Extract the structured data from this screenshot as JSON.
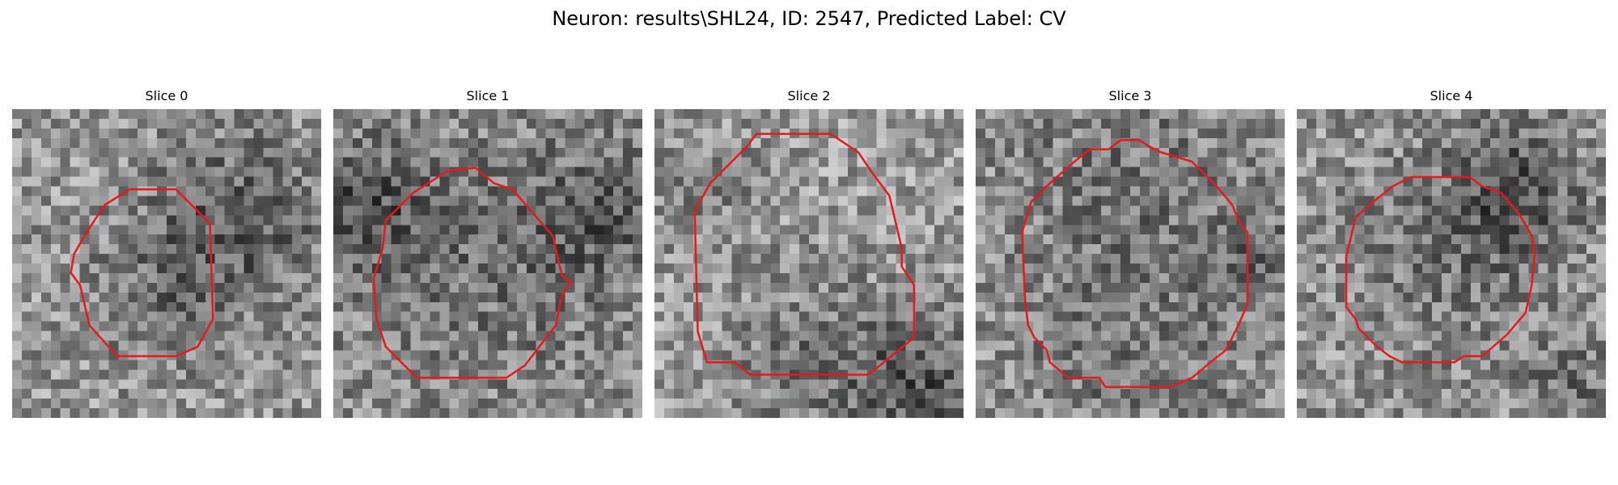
{
  "figure": {
    "title": "Neuron: results\\SHL24, ID: 2547, Predicted Label: CV",
    "contour_color": "#e41a1c",
    "colormap": "gray",
    "grid_size": 32,
    "slices": [
      {
        "title": "Slice 0",
        "background": {
          "base": 150,
          "seed": 11,
          "dark_spots": [
            [
              0.72,
              0.38,
              0.2,
              60
            ],
            [
              0.45,
              0.62,
              0.15,
              30
            ]
          ]
        },
        "contour": [
          [
            0.38,
            0.26
          ],
          [
            0.53,
            0.26
          ],
          [
            0.64,
            0.37
          ],
          [
            0.65,
            0.68
          ],
          [
            0.6,
            0.77
          ],
          [
            0.53,
            0.8
          ],
          [
            0.34,
            0.8
          ],
          [
            0.25,
            0.7
          ],
          [
            0.22,
            0.57
          ],
          [
            0.19,
            0.53
          ],
          [
            0.2,
            0.47
          ],
          [
            0.24,
            0.4
          ],
          [
            0.3,
            0.31
          ]
        ]
      },
      {
        "title": "Slice 1",
        "background": {
          "base": 140,
          "seed": 23,
          "dark_spots": [
            [
              0.1,
              0.32,
              0.15,
              55
            ],
            [
              0.85,
              0.35,
              0.15,
              45
            ],
            [
              0.5,
              0.5,
              0.25,
              25
            ]
          ]
        },
        "contour": [
          [
            0.37,
            0.2
          ],
          [
            0.46,
            0.19
          ],
          [
            0.52,
            0.24
          ],
          [
            0.58,
            0.26
          ],
          [
            0.64,
            0.33
          ],
          [
            0.71,
            0.41
          ],
          [
            0.74,
            0.54
          ],
          [
            0.77,
            0.56
          ],
          [
            0.74,
            0.6
          ],
          [
            0.72,
            0.7
          ],
          [
            0.62,
            0.83
          ],
          [
            0.56,
            0.87
          ],
          [
            0.27,
            0.87
          ],
          [
            0.17,
            0.77
          ],
          [
            0.14,
            0.68
          ],
          [
            0.13,
            0.55
          ],
          [
            0.16,
            0.45
          ],
          [
            0.17,
            0.36
          ],
          [
            0.26,
            0.27
          ]
        ]
      },
      {
        "title": "Slice 2",
        "background": {
          "base": 155,
          "seed": 37,
          "dark_spots": [
            [
              0.85,
              0.9,
              0.15,
              70
            ],
            [
              0.5,
              0.8,
              0.2,
              35
            ],
            [
              0.15,
              0.25,
              0.12,
              30
            ]
          ]
        },
        "contour": [
          [
            0.33,
            0.08
          ],
          [
            0.57,
            0.08
          ],
          [
            0.66,
            0.14
          ],
          [
            0.7,
            0.2
          ],
          [
            0.76,
            0.28
          ],
          [
            0.8,
            0.45
          ],
          [
            0.8,
            0.51
          ],
          [
            0.84,
            0.57
          ],
          [
            0.84,
            0.74
          ],
          [
            0.79,
            0.78
          ],
          [
            0.73,
            0.83
          ],
          [
            0.69,
            0.86
          ],
          [
            0.31,
            0.86
          ],
          [
            0.26,
            0.82
          ],
          [
            0.17,
            0.82
          ],
          [
            0.14,
            0.72
          ],
          [
            0.13,
            0.33
          ],
          [
            0.18,
            0.24
          ],
          [
            0.23,
            0.19
          ],
          [
            0.3,
            0.12
          ]
        ]
      },
      {
        "title": "Slice 3",
        "background": {
          "base": 150,
          "seed": 51,
          "dark_spots": [
            [
              0.5,
              0.2,
              0.3,
              30
            ],
            [
              0.9,
              0.5,
              0.12,
              40
            ],
            [
              0.5,
              0.8,
              0.25,
              30
            ]
          ]
        },
        "contour": [
          [
            0.47,
            0.1
          ],
          [
            0.53,
            0.1
          ],
          [
            0.56,
            0.12
          ],
          [
            0.6,
            0.14
          ],
          [
            0.7,
            0.17
          ],
          [
            0.78,
            0.25
          ],
          [
            0.83,
            0.31
          ],
          [
            0.85,
            0.36
          ],
          [
            0.88,
            0.4
          ],
          [
            0.88,
            0.63
          ],
          [
            0.85,
            0.7
          ],
          [
            0.81,
            0.78
          ],
          [
            0.76,
            0.82
          ],
          [
            0.7,
            0.87
          ],
          [
            0.63,
            0.9
          ],
          [
            0.42,
            0.9
          ],
          [
            0.4,
            0.87
          ],
          [
            0.3,
            0.87
          ],
          [
            0.24,
            0.82
          ],
          [
            0.23,
            0.78
          ],
          [
            0.19,
            0.74
          ],
          [
            0.17,
            0.7
          ],
          [
            0.16,
            0.62
          ],
          [
            0.15,
            0.4
          ],
          [
            0.18,
            0.3
          ],
          [
            0.24,
            0.24
          ],
          [
            0.32,
            0.17
          ],
          [
            0.37,
            0.13
          ],
          [
            0.43,
            0.13
          ]
        ]
      },
      {
        "title": "Slice 4",
        "background": {
          "base": 150,
          "seed": 67,
          "dark_spots": [
            [
              0.7,
              0.25,
              0.15,
              60
            ],
            [
              0.5,
              0.48,
              0.25,
              30
            ],
            [
              0.9,
              0.9,
              0.12,
              35
            ]
          ]
        },
        "contour": [
          [
            0.37,
            0.22
          ],
          [
            0.56,
            0.22
          ],
          [
            0.6,
            0.25
          ],
          [
            0.66,
            0.27
          ],
          [
            0.72,
            0.34
          ],
          [
            0.76,
            0.41
          ],
          [
            0.77,
            0.47
          ],
          [
            0.76,
            0.57
          ],
          [
            0.74,
            0.66
          ],
          [
            0.68,
            0.73
          ],
          [
            0.6,
            0.8
          ],
          [
            0.54,
            0.8
          ],
          [
            0.51,
            0.82
          ],
          [
            0.34,
            0.82
          ],
          [
            0.3,
            0.8
          ],
          [
            0.26,
            0.77
          ],
          [
            0.2,
            0.71
          ],
          [
            0.19,
            0.68
          ],
          [
            0.16,
            0.64
          ],
          [
            0.16,
            0.48
          ],
          [
            0.19,
            0.35
          ],
          [
            0.26,
            0.29
          ],
          [
            0.31,
            0.25
          ]
        ]
      }
    ]
  }
}
